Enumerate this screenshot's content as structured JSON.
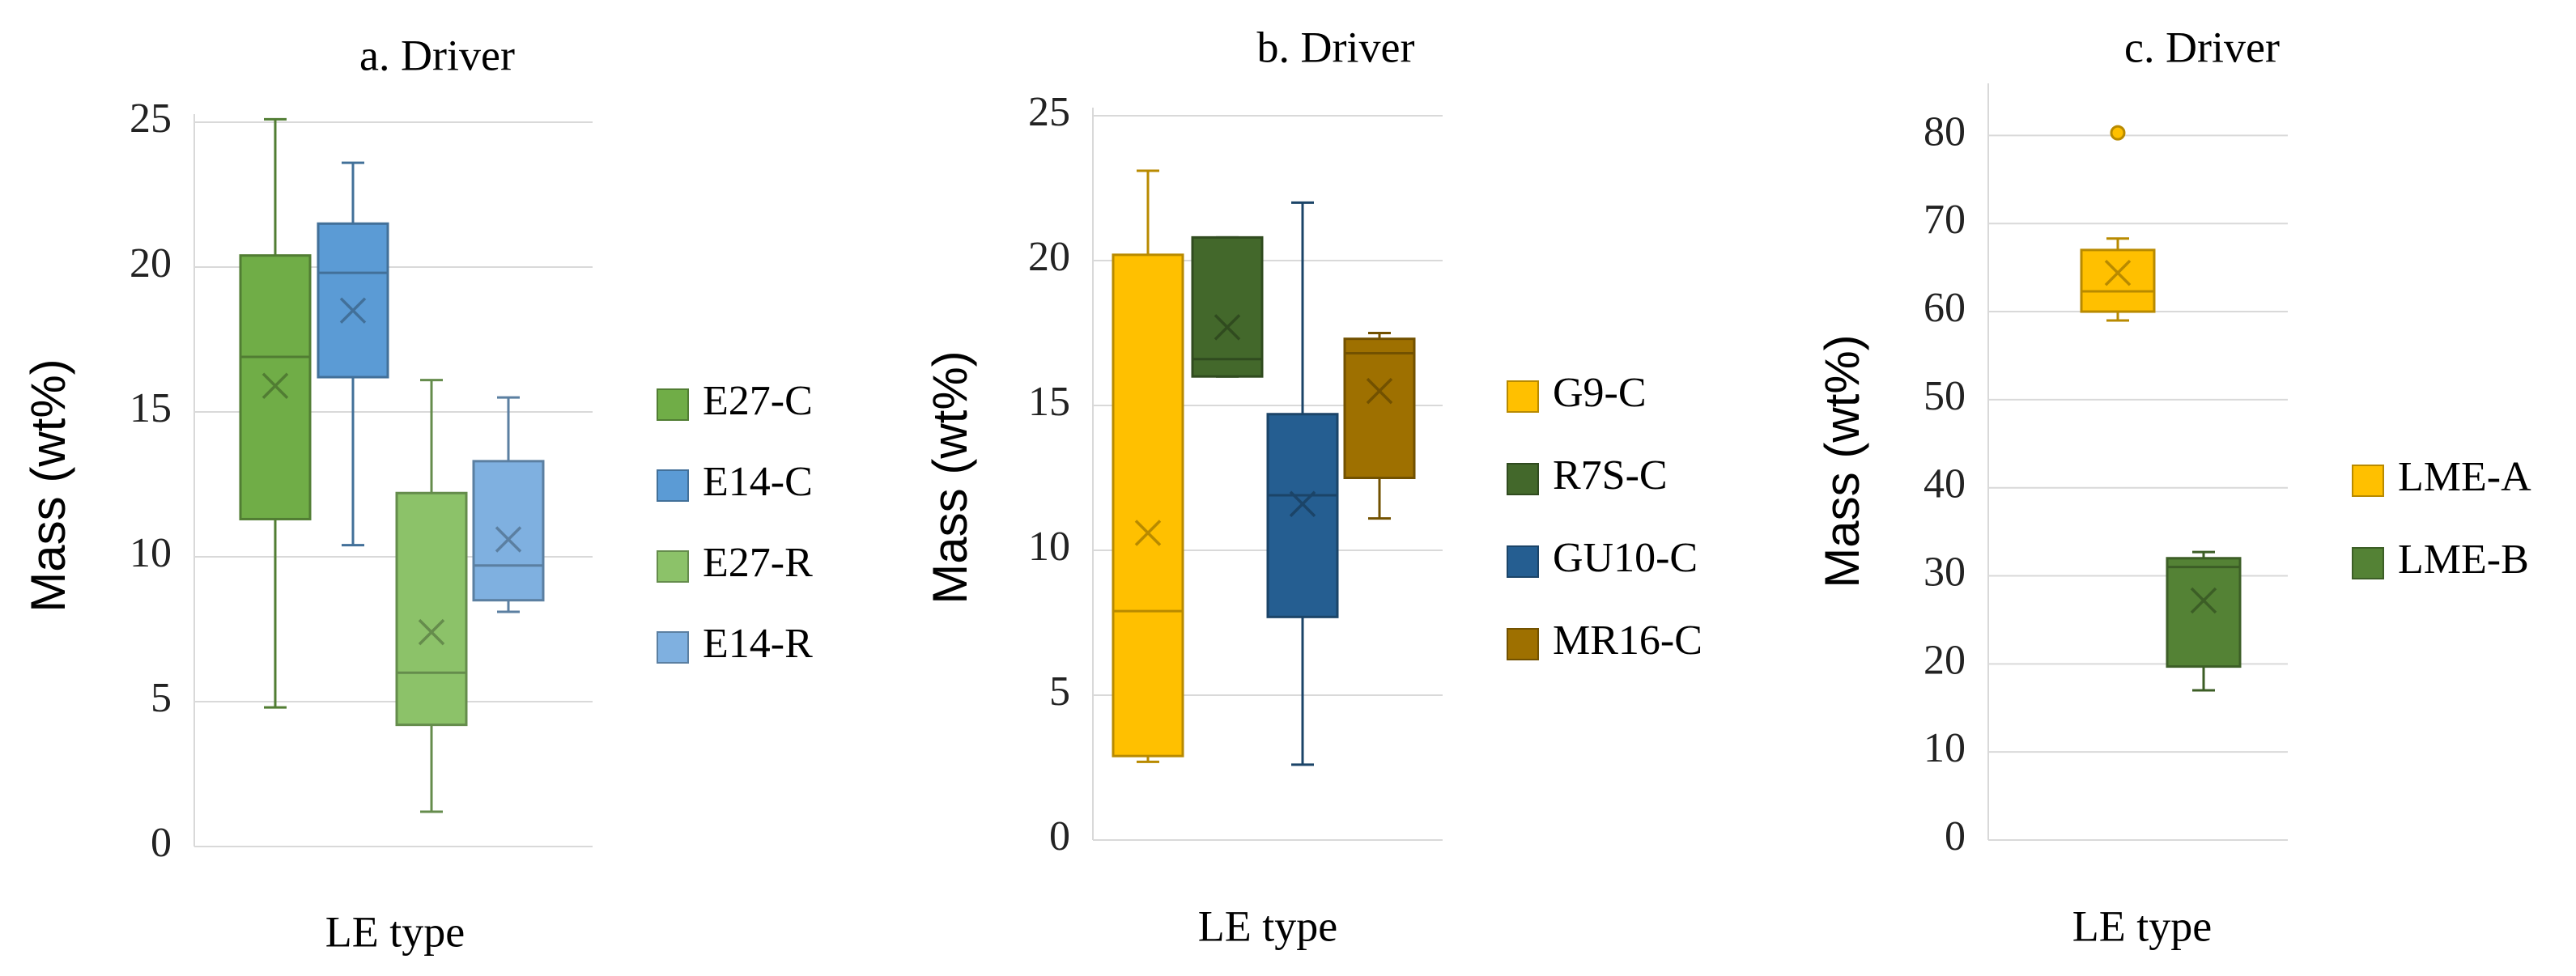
{
  "chart_data": [
    {
      "id": "a",
      "type": "box",
      "title": "a. Driver",
      "xlabel": "LE type",
      "ylabel": "Mass (wt%)",
      "ylim": [
        0,
        25
      ],
      "yticks": [
        0,
        5,
        10,
        15,
        20,
        25
      ],
      "grid": true,
      "legend": "right",
      "series": [
        {
          "name": "E27-C",
          "color": "#70AD47",
          "min": 4.8,
          "q1": 11.3,
          "median": 16.9,
          "q3": 20.4,
          "max": 25.1,
          "mean": 15.9,
          "outliers": []
        },
        {
          "name": "E14-C",
          "color": "#5B9BD5",
          "min": 10.4,
          "q1": 16.2,
          "median": 19.8,
          "q3": 21.5,
          "max": 23.6,
          "mean": 18.5,
          "outliers": []
        },
        {
          "name": "E27-R",
          "color": "#8CC269",
          "min": 1.2,
          "q1": 4.2,
          "median": 6.0,
          "q3": 12.2,
          "max": 16.1,
          "mean": 7.4,
          "outliers": []
        },
        {
          "name": "E14-R",
          "color": "#7FB0E0",
          "min": 8.1,
          "q1": 8.5,
          "median": 9.7,
          "q3": 13.3,
          "max": 15.5,
          "mean": 10.6,
          "outliers": []
        }
      ]
    },
    {
      "id": "b",
      "type": "box",
      "title": "b. Driver",
      "xlabel": "LE type",
      "ylabel": "Mass (wt%)",
      "ylim": [
        0,
        25
      ],
      "yticks": [
        0,
        5,
        10,
        15,
        20,
        25
      ],
      "grid": true,
      "legend": "right",
      "series": [
        {
          "name": "G9-C",
          "color": "#FFC000",
          "min": 2.7,
          "q1": 2.9,
          "median": 7.9,
          "q3": 20.2,
          "max": 23.1,
          "mean": 10.6,
          "outliers": []
        },
        {
          "name": "R7S-C",
          "color": "#43682B",
          "min": 16.0,
          "q1": 16.0,
          "median": 16.6,
          "q3": 20.8,
          "max": 20.8,
          "mean": 17.7,
          "outliers": []
        },
        {
          "name": "GU10-C",
          "color": "#255E91",
          "min": 2.6,
          "q1": 7.7,
          "median": 11.9,
          "q3": 14.7,
          "max": 22.0,
          "mean": 11.6,
          "outliers": []
        },
        {
          "name": "MR16-C",
          "color": "#9E7000",
          "min": 11.1,
          "q1": 12.5,
          "median": 16.8,
          "q3": 17.3,
          "max": 17.5,
          "mean": 15.5,
          "outliers": []
        }
      ]
    },
    {
      "id": "c",
      "type": "box",
      "title": "c. Driver",
      "xlabel": "LE type",
      "ylabel": "Mass (wt%)",
      "ylim": [
        0,
        85
      ],
      "yticks": [
        0,
        10,
        20,
        30,
        40,
        50,
        60,
        70,
        80
      ],
      "grid": true,
      "legend": "right",
      "series": [
        {
          "name": "LME-A",
          "color": "#FFC000",
          "min": 59.0,
          "q1": 60.0,
          "median": 62.3,
          "q3": 67.0,
          "max": 68.3,
          "mean": 64.4,
          "outliers": [
            80.3
          ]
        },
        {
          "name": "LME-B",
          "color": "#548235",
          "min": 17.0,
          "q1": 19.7,
          "median": 31.0,
          "q3": 32.0,
          "max": 32.7,
          "mean": 27.2,
          "outliers": []
        }
      ]
    }
  ]
}
